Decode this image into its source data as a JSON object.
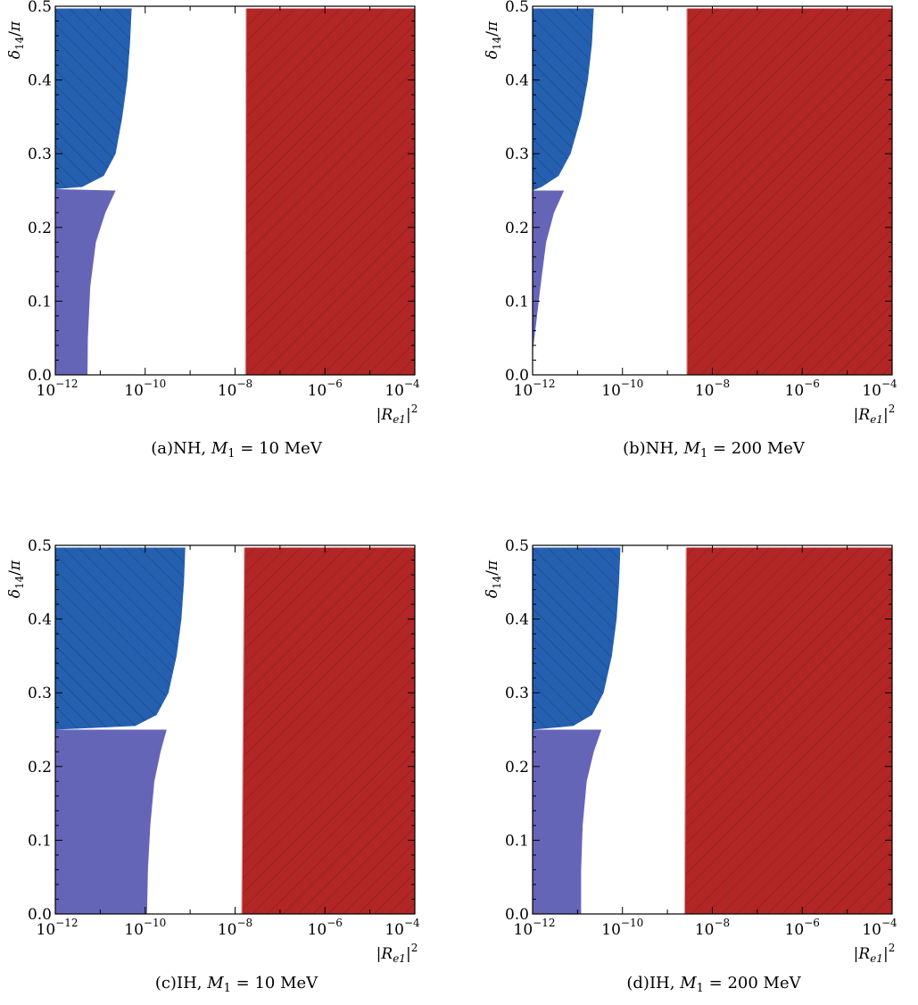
{
  "chart_data": [
    {
      "type": "area",
      "panel": "a",
      "caption_prefix": "(a)NH, ",
      "caption_var": "M",
      "caption_sub": "1",
      "caption_rest": " = 10 MeV",
      "xscale": "log",
      "xlim": [
        1e-12,
        0.0001
      ],
      "ylim": [
        0,
        0.5
      ],
      "xticks": [
        {
          "base": "10",
          "exp": "−12"
        },
        {
          "base": "10",
          "exp": "−10"
        },
        {
          "base": "10",
          "exp": "−8"
        },
        {
          "base": "10",
          "exp": "−6"
        },
        {
          "base": "10",
          "exp": "−4"
        }
      ],
      "yticks": [
        "0.0",
        "0.1",
        "0.2",
        "0.3",
        "0.4",
        "0.5"
      ],
      "ylabel": "δ14/π",
      "xlabel": "|Re1|2",
      "regions": {
        "blue_edge": [
          [
            0.497,
            5e-11
          ],
          [
            0.45,
            4.6e-11
          ],
          [
            0.4,
            4e-11
          ],
          [
            0.35,
            3.1e-11
          ],
          [
            0.3,
            2.2e-11
          ],
          [
            0.27,
            1.2e-11
          ],
          [
            0.255,
            4e-12
          ],
          [
            0.252,
            1e-12
          ]
        ],
        "purple_edge": [
          [
            0.252,
            1e-12
          ],
          [
            0.25,
            2.2e-11
          ],
          [
            0.22,
            1.3e-11
          ],
          [
            0.18,
            8e-12
          ],
          [
            0.12,
            6e-12
          ],
          [
            0.05,
            5.3e-12
          ],
          [
            0.0,
            5.2e-12
          ]
        ],
        "red_left": [
          [
            0.0,
            1.7e-08
          ],
          [
            0.497,
            1.75e-08
          ]
        ]
      }
    },
    {
      "type": "area",
      "panel": "b",
      "caption_prefix": "(b)NH, ",
      "caption_var": "M",
      "caption_sub": "1",
      "caption_rest": " = 200 MeV",
      "xscale": "log",
      "xlim": [
        1e-12,
        0.0001
      ],
      "ylim": [
        0,
        0.5
      ],
      "xticks": [
        {
          "base": "10",
          "exp": "−12"
        },
        {
          "base": "10",
          "exp": "−10"
        },
        {
          "base": "10",
          "exp": "−8"
        },
        {
          "base": "10",
          "exp": "−6"
        },
        {
          "base": "10",
          "exp": "−4"
        }
      ],
      "yticks": [
        "0.0",
        "0.1",
        "0.2",
        "0.3",
        "0.4",
        "0.5"
      ],
      "ylabel": "δ14/π",
      "xlabel": "|Re1|2",
      "regions": {
        "blue_edge": [
          [
            0.497,
            2.3e-11
          ],
          [
            0.45,
            2.1e-11
          ],
          [
            0.4,
            1.7e-11
          ],
          [
            0.35,
            1.2e-11
          ],
          [
            0.3,
            7e-12
          ],
          [
            0.27,
            3.8e-12
          ],
          [
            0.255,
            1.6e-12
          ],
          [
            0.25,
            1e-12
          ]
        ],
        "purple_edge": [
          [
            0.25,
            1e-12
          ],
          [
            0.25,
            5e-12
          ],
          [
            0.22,
            3e-12
          ],
          [
            0.18,
            2e-12
          ],
          [
            0.12,
            1.5e-12
          ],
          [
            0.07,
            1.2e-12
          ],
          [
            0.03,
            1e-12
          ]
        ],
        "red_left": [
          [
            0.0,
            2.7e-09
          ],
          [
            0.497,
            2.7e-09
          ]
        ]
      }
    },
    {
      "type": "area",
      "panel": "c",
      "caption_prefix": "(c)IH, ",
      "caption_var": "M",
      "caption_sub": "1",
      "caption_rest": " = 10 MeV",
      "xscale": "log",
      "xlim": [
        1e-12,
        0.0001
      ],
      "ylim": [
        0,
        0.5
      ],
      "xticks": [
        {
          "base": "10",
          "exp": "−12"
        },
        {
          "base": "10",
          "exp": "−10"
        },
        {
          "base": "10",
          "exp": "−8"
        },
        {
          "base": "10",
          "exp": "−6"
        },
        {
          "base": "10",
          "exp": "−4"
        }
      ],
      "yticks": [
        "0.0",
        "0.1",
        "0.2",
        "0.3",
        "0.4",
        "0.5"
      ],
      "ylabel": "δ14/π",
      "xlabel": "|Re1|2",
      "regions": {
        "blue_edge": [
          [
            0.497,
            7.8e-10
          ],
          [
            0.45,
            7.3e-10
          ],
          [
            0.4,
            6.4e-10
          ],
          [
            0.35,
            5e-10
          ],
          [
            0.3,
            3.3e-10
          ],
          [
            0.27,
            1.8e-10
          ],
          [
            0.255,
            6e-11
          ],
          [
            0.25,
            1e-12
          ]
        ],
        "purple_edge": [
          [
            0.25,
            1e-12
          ],
          [
            0.25,
            3e-10
          ],
          [
            0.22,
            2.2e-10
          ],
          [
            0.18,
            1.6e-10
          ],
          [
            0.12,
            1.3e-10
          ],
          [
            0.06,
            1.15e-10
          ],
          [
            0.0,
            1.1e-10
          ]
        ],
        "red_left": [
          [
            0.0,
            1.4e-08
          ],
          [
            0.497,
            1.6e-08
          ]
        ]
      }
    },
    {
      "type": "area",
      "panel": "d",
      "caption_prefix": "(d)IH, ",
      "caption_var": "M",
      "caption_sub": "1",
      "caption_rest": " = 200 MeV",
      "xscale": "log",
      "xlim": [
        1e-12,
        0.0001
      ],
      "ylim": [
        0,
        0.5
      ],
      "xticks": [
        {
          "base": "10",
          "exp": "−12"
        },
        {
          "base": "10",
          "exp": "−10"
        },
        {
          "base": "10",
          "exp": "−8"
        },
        {
          "base": "10",
          "exp": "−6"
        },
        {
          "base": "10",
          "exp": "−4"
        }
      ],
      "yticks": [
        "0.0",
        "0.1",
        "0.2",
        "0.3",
        "0.4",
        "0.5"
      ],
      "ylabel": "δ14/π",
      "xlabel": "|Re1|2",
      "regions": {
        "blue_edge": [
          [
            0.497,
            9e-11
          ],
          [
            0.45,
            8.4e-11
          ],
          [
            0.4,
            7.4e-11
          ],
          [
            0.35,
            5.8e-11
          ],
          [
            0.3,
            3.8e-11
          ],
          [
            0.27,
            2.1e-11
          ],
          [
            0.255,
            8e-12
          ],
          [
            0.25,
            1e-12
          ]
        ],
        "purple_edge": [
          [
            0.25,
            1e-12
          ],
          [
            0.25,
            3.4e-11
          ],
          [
            0.22,
            2.3e-11
          ],
          [
            0.18,
            1.6e-11
          ],
          [
            0.12,
            1.3e-11
          ],
          [
            0.06,
            1.2e-11
          ],
          [
            0.0,
            1.2e-11
          ]
        ],
        "red_left": [
          [
            0.0,
            2.4e-09
          ],
          [
            0.497,
            2.6e-09
          ]
        ]
      }
    }
  ],
  "colors": {
    "red": "#B22625",
    "blue": "#2560B0",
    "purple": "#6565B8",
    "hatch": "#3A2020"
  }
}
